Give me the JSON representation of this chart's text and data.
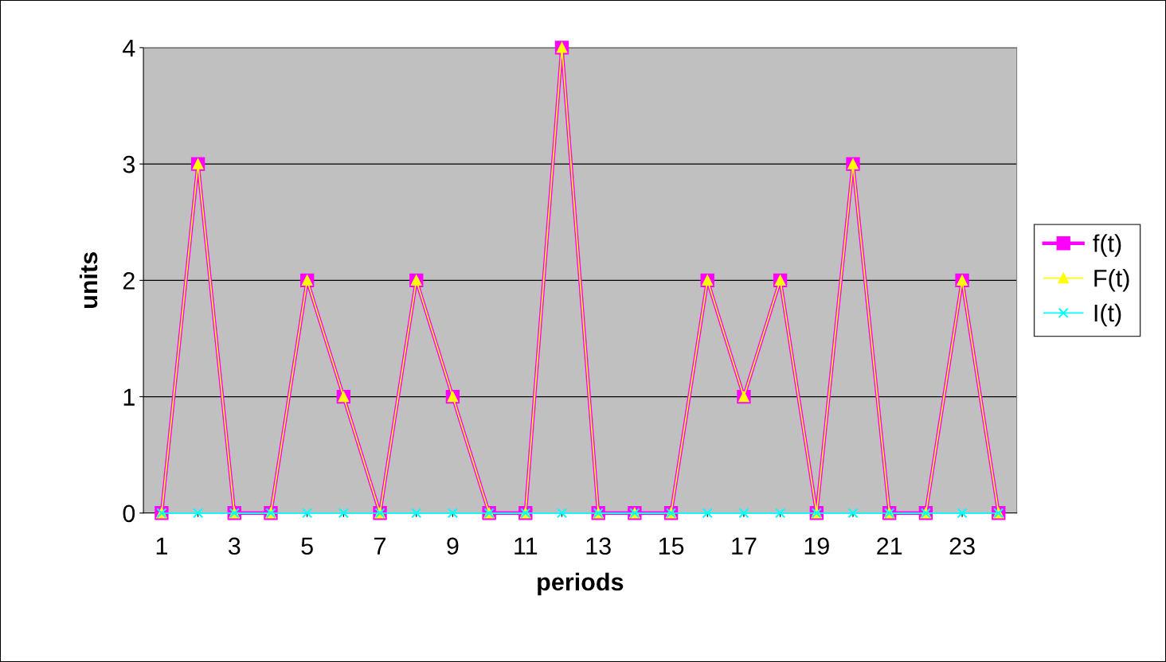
{
  "chart_data": {
    "type": "line",
    "xlabel": "periods",
    "ylabel": "units",
    "categories": [
      "1",
      null,
      "3",
      null,
      "5",
      null,
      "7",
      null,
      "9",
      null,
      "11",
      null,
      "13",
      null,
      "15",
      null,
      "17",
      null,
      "19",
      null,
      "21",
      null,
      "23",
      null
    ],
    "series": [
      {
        "name": "f(t)",
        "color": "#ff00ff",
        "marker": "square",
        "values": [
          0,
          3,
          0,
          0,
          2,
          1,
          0,
          2,
          1,
          0,
          0,
          4,
          0,
          0,
          0,
          2,
          1,
          2,
          0,
          3,
          0,
          0,
          2,
          0
        ]
      },
      {
        "name": "F(t)",
        "color": "#ffff00",
        "marker": "triangle",
        "values": [
          0,
          3,
          0,
          0,
          2,
          1,
          0,
          2,
          1,
          0,
          0,
          4,
          0,
          0,
          0,
          2,
          1,
          2,
          0,
          3,
          0,
          0,
          2,
          0
        ]
      },
      {
        "name": "I(t)",
        "color": "#00ffff",
        "marker": "cross",
        "values": [
          0,
          0,
          0,
          0,
          0,
          0,
          0,
          0,
          0,
          0,
          0,
          0,
          0,
          0,
          0,
          0,
          0,
          0,
          0,
          0,
          0,
          0,
          0,
          0
        ]
      }
    ],
    "ylim": [
      0,
      4
    ],
    "yticks": [
      0,
      1,
      2,
      3,
      4
    ],
    "grid": "y",
    "legend": "right",
    "line_style": "solid"
  }
}
